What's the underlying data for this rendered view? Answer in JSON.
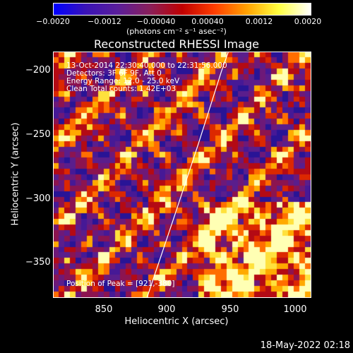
{
  "colorbar": {
    "ticks": [
      "−0.0020",
      "−0.0012",
      "−0.00040",
      "0.00040",
      "0.0012",
      "0.0020"
    ],
    "units_label": "(photons cm⁻² s⁻¹ asec⁻²)",
    "colors": [
      "#0000ff",
      "#3a13b7",
      "#5a1e9a",
      "#8a1f5a",
      "#c00000",
      "#ff3d00",
      "#ffa000",
      "#ffff40",
      "#ffffff"
    ]
  },
  "plot": {
    "title": "Reconstructed RHESSI Image",
    "info_lines": [
      "13-Oct-2014 22:30:40.000 to 22:31:56.000",
      "Detectors: 3F 6F 9F, Att 0",
      "Energy Range: 12.0 - 25.0 keV",
      "Clean     Total counts: 1.42E+03"
    ],
    "peak_label": "Position of Peak = [921,-380]",
    "xlabel": "Heliocentric X (arcsec)",
    "ylabel": "Heliocentric Y (arcsec)",
    "x_ticks": [
      "850",
      "900",
      "950",
      "1000"
    ],
    "y_ticks": [
      "−200",
      "−250",
      "−300",
      "−350"
    ]
  },
  "chart_data": {
    "type": "heatmap",
    "title": "Reconstructed RHESSI Image",
    "xlabel": "Heliocentric X (arcsec)",
    "ylabel": "Heliocentric Y (arcsec)",
    "xlim": [
      813,
      1000
    ],
    "ylim": [
      -380,
      -190
    ],
    "zlim": [
      -0.002,
      0.002
    ],
    "colorscale_ticks": [
      -0.002,
      -0.0012,
      -0.0004,
      0.0004,
      0.0012,
      0.002
    ],
    "peak": [
      921,
      -380
    ],
    "limb_points": [
      [
        881,
        -380
      ],
      [
        900,
        -320
      ],
      [
        918,
        -262
      ],
      [
        935,
        -205
      ],
      [
        940,
        -190
      ]
    ]
  },
  "footer": {
    "timestamp": "18-May-2022 02:18"
  }
}
